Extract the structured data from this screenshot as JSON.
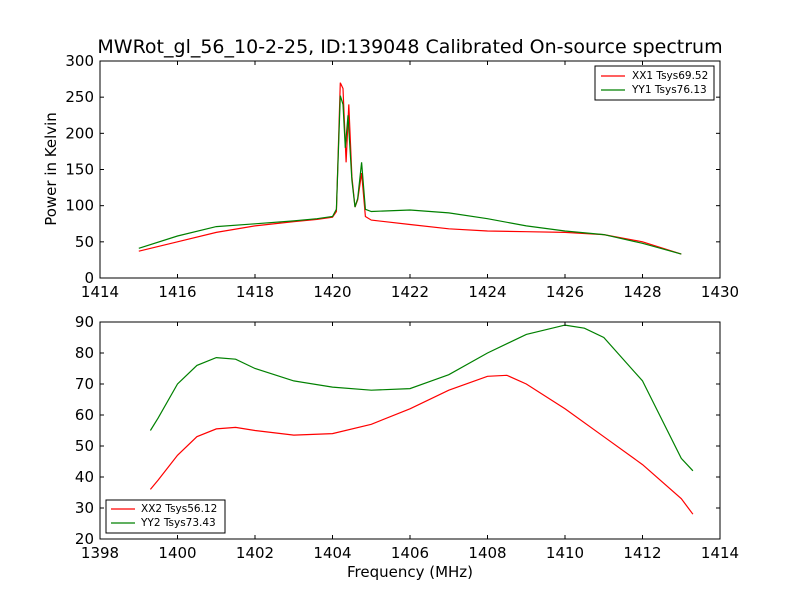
{
  "chart_data": [
    {
      "type": "line",
      "title": "MWRot_gl_56_10-2-25, ID:139048 Calibrated On-source spectrum",
      "xlabel": "",
      "ylabel": "Power in Kelvin",
      "xlim": [
        1414,
        1430
      ],
      "ylim": [
        0,
        300
      ],
      "xticks": [
        "1414",
        "1416",
        "1418",
        "1420",
        "1422",
        "1424",
        "1426",
        "1428",
        "1430"
      ],
      "yticks": [
        "0",
        "50",
        "100",
        "150",
        "200",
        "250",
        "300"
      ],
      "legend_position": "top-right",
      "series": [
        {
          "name": "XX1 Tsys69.52",
          "color": "#ff0000",
          "points": [
            [
              1415.0,
              37
            ],
            [
              1416.0,
              50
            ],
            [
              1417.0,
              63
            ],
            [
              1418.0,
              72
            ],
            [
              1419.0,
              78
            ],
            [
              1419.6,
              81
            ],
            [
              1420.0,
              84
            ],
            [
              1420.1,
              92
            ],
            [
              1420.2,
              270
            ],
            [
              1420.27,
              262
            ],
            [
              1420.35,
              160
            ],
            [
              1420.42,
              240
            ],
            [
              1420.5,
              140
            ],
            [
              1420.58,
              98
            ],
            [
              1420.65,
              108
            ],
            [
              1420.75,
              145
            ],
            [
              1420.85,
              85
            ],
            [
              1421.0,
              80
            ],
            [
              1422.0,
              74
            ],
            [
              1423.0,
              68
            ],
            [
              1424.0,
              65
            ],
            [
              1425.0,
              64
            ],
            [
              1426.0,
              63
            ],
            [
              1427.0,
              60
            ],
            [
              1428.0,
              50
            ],
            [
              1429.0,
              33
            ]
          ]
        },
        {
          "name": "YY1 Tsys76.13",
          "color": "#008000",
          "points": [
            [
              1415.0,
              41
            ],
            [
              1416.0,
              58
            ],
            [
              1417.0,
              71
            ],
            [
              1418.0,
              75
            ],
            [
              1419.0,
              79
            ],
            [
              1419.6,
              82
            ],
            [
              1420.0,
              85
            ],
            [
              1420.1,
              95
            ],
            [
              1420.2,
              252
            ],
            [
              1420.27,
              240
            ],
            [
              1420.33,
              180
            ],
            [
              1420.4,
              225
            ],
            [
              1420.5,
              135
            ],
            [
              1420.58,
              98
            ],
            [
              1420.65,
              110
            ],
            [
              1420.75,
              160
            ],
            [
              1420.85,
              95
            ],
            [
              1421.0,
              92
            ],
            [
              1422.0,
              94
            ],
            [
              1423.0,
              90
            ],
            [
              1424.0,
              82
            ],
            [
              1425.0,
              72
            ],
            [
              1426.0,
              65
            ],
            [
              1427.0,
              60
            ],
            [
              1428.0,
              48
            ],
            [
              1429.0,
              33
            ]
          ]
        }
      ]
    },
    {
      "type": "line",
      "title": "",
      "xlabel": "Frequency (MHz)",
      "ylabel": "",
      "xlim": [
        1398,
        1414
      ],
      "ylim": [
        20,
        90
      ],
      "xticks": [
        "1398",
        "1400",
        "1402",
        "1404",
        "1406",
        "1408",
        "1410",
        "1412",
        "1414"
      ],
      "yticks": [
        "20",
        "30",
        "40",
        "50",
        "60",
        "70",
        "80",
        "90"
      ],
      "legend_position": "bottom-left",
      "series": [
        {
          "name": "XX2 Tsys56.12",
          "color": "#ff0000",
          "points": [
            [
              1399.3,
              36
            ],
            [
              1399.5,
              39
            ],
            [
              1400.0,
              47
            ],
            [
              1400.5,
              53
            ],
            [
              1401.0,
              55.5
            ],
            [
              1401.5,
              56
            ],
            [
              1402.0,
              55
            ],
            [
              1403.0,
              53.5
            ],
            [
              1404.0,
              54
            ],
            [
              1405.0,
              57
            ],
            [
              1406.0,
              62
            ],
            [
              1407.0,
              68
            ],
            [
              1408.0,
              72.5
            ],
            [
              1408.5,
              72.8
            ],
            [
              1409.0,
              70
            ],
            [
              1410.0,
              62
            ],
            [
              1411.0,
              53
            ],
            [
              1412.0,
              44
            ],
            [
              1413.0,
              33
            ],
            [
              1413.3,
              28
            ]
          ]
        },
        {
          "name": "YY2 Tsys73.43",
          "color": "#008000",
          "points": [
            [
              1399.3,
              55
            ],
            [
              1399.5,
              59
            ],
            [
              1400.0,
              70
            ],
            [
              1400.5,
              76
            ],
            [
              1401.0,
              78.5
            ],
            [
              1401.5,
              78
            ],
            [
              1402.0,
              75
            ],
            [
              1403.0,
              71
            ],
            [
              1404.0,
              69
            ],
            [
              1405.0,
              68
            ],
            [
              1406.0,
              68.5
            ],
            [
              1407.0,
              73
            ],
            [
              1408.0,
              80
            ],
            [
              1409.0,
              86
            ],
            [
              1410.0,
              89
            ],
            [
              1410.5,
              88
            ],
            [
              1411.0,
              85
            ],
            [
              1412.0,
              71
            ],
            [
              1413.0,
              46
            ],
            [
              1413.3,
              42
            ]
          ]
        }
      ]
    }
  ]
}
